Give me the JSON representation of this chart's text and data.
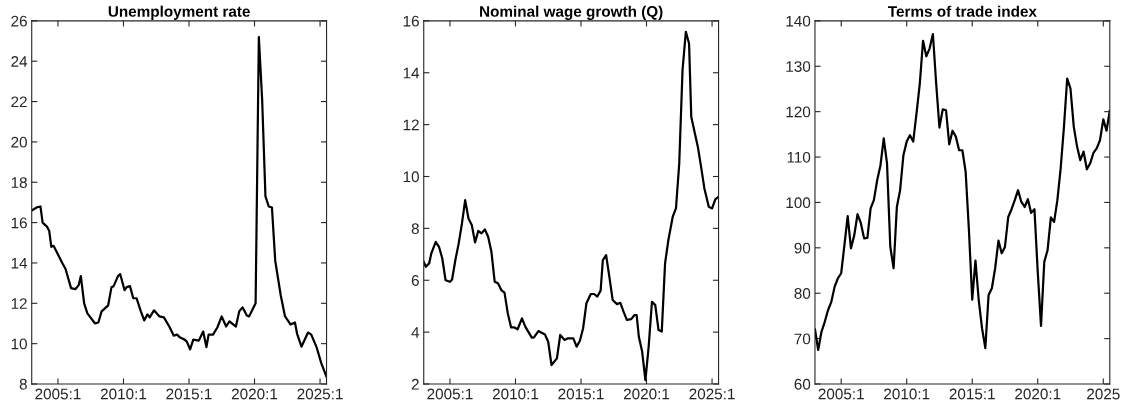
{
  "chart_data": [
    {
      "type": "line",
      "title": "Unemployment rate",
      "xlim": [
        "2003-01",
        "2025-07"
      ],
      "xticks": [
        {
          "value": "2005-01",
          "label": "2005:1"
        },
        {
          "value": "2010-01",
          "label": "2010:1"
        },
        {
          "value": "2015-01",
          "label": "2015:1"
        },
        {
          "value": "2020-01",
          "label": "2020:1"
        },
        {
          "value": "2025-01",
          "label": "2025:1"
        }
      ],
      "ylim": [
        8,
        26
      ],
      "yticks": [
        8,
        10,
        12,
        14,
        16,
        18,
        20,
        22,
        24,
        26
      ],
      "grid": false,
      "marker": "none",
      "line_style": "solid",
      "series": [
        {
          "color": "#000000",
          "x": [
            "2003-01",
            "2003-06",
            "2003-09",
            "2003-11",
            "2004-03",
            "2004-05",
            "2004-07",
            "2004-09",
            "2005-05",
            "2005-08",
            "2006-01",
            "2006-05",
            "2006-08",
            "2006-10",
            "2007-01",
            "2007-04",
            "2007-11",
            "2008-02",
            "2008-05",
            "2008-11",
            "2009-02",
            "2009-04",
            "2009-08",
            "2009-10",
            "2010-02",
            "2010-04",
            "2010-07",
            "2010-10",
            "2011-01",
            "2011-05",
            "2011-08",
            "2011-11",
            "2012-01",
            "2012-05",
            "2012-10",
            "2013-02",
            "2013-07",
            "2013-11",
            "2014-02",
            "2014-05",
            "2014-09",
            "2014-11",
            "2015-02",
            "2015-05",
            "2015-10",
            "2016-02",
            "2016-05",
            "2016-07",
            "2016-11",
            "2017-03",
            "2017-07",
            "2017-11",
            "2018-02",
            "2018-08",
            "2018-11",
            "2019-02",
            "2019-06",
            "2019-08",
            "2020-02",
            "2020-05",
            "2020-08",
            "2020-11",
            "2021-02",
            "2021-05",
            "2021-08",
            "2022-01",
            "2022-05",
            "2022-10",
            "2023-02",
            "2023-04",
            "2023-08",
            "2024-02",
            "2024-05",
            "2024-10",
            "2025-02",
            "2025-07"
          ],
          "values": [
            16.6,
            16.76,
            16.8,
            16.0,
            15.8,
            15.6,
            14.8,
            14.85,
            14.0,
            13.7,
            12.75,
            12.7,
            12.9,
            13.35,
            12.0,
            11.5,
            11.0,
            11.05,
            11.6,
            11.9,
            12.8,
            12.85,
            13.35,
            13.45,
            12.65,
            12.8,
            12.85,
            12.25,
            12.25,
            11.6,
            11.15,
            11.45,
            11.3,
            11.65,
            11.35,
            11.3,
            10.85,
            10.4,
            10.45,
            10.3,
            10.2,
            10.1,
            9.72,
            10.2,
            10.15,
            10.6,
            9.83,
            10.45,
            10.45,
            10.8,
            11.35,
            10.85,
            11.1,
            10.85,
            11.6,
            11.8,
            11.4,
            11.35,
            12.0,
            25.2,
            22.1,
            17.3,
            16.8,
            16.75,
            14.1,
            12.4,
            11.35,
            10.95,
            11.05,
            10.5,
            9.85,
            10.55,
            10.45,
            9.8,
            9.05,
            8.35
          ]
        }
      ]
    },
    {
      "type": "line",
      "title": "Nominal wage growth (Q)",
      "xlim": [
        "2003-01",
        "2025-07"
      ],
      "xticks": [
        {
          "value": "2005-01",
          "label": "2005:1"
        },
        {
          "value": "2010-01",
          "label": "2010:1"
        },
        {
          "value": "2015-01",
          "label": "2015:1"
        },
        {
          "value": "2020-01",
          "label": "2020:1"
        },
        {
          "value": "2025-01",
          "label": "2025:1"
        }
      ],
      "ylim": [
        2,
        16
      ],
      "yticks": [
        2,
        4,
        6,
        8,
        10,
        12,
        14,
        16
      ],
      "grid": false,
      "marker": "none",
      "line_style": "solid",
      "series": [
        {
          "color": "#000000",
          "x": [
            "2003-01",
            "2003-03",
            "2003-06",
            "2003-08",
            "2003-12",
            "2004-03",
            "2004-06",
            "2004-09",
            "2005-01",
            "2005-03",
            "2005-06",
            "2005-09",
            "2005-12",
            "2006-03",
            "2006-06",
            "2006-09",
            "2006-12",
            "2007-03",
            "2007-06",
            "2007-09",
            "2007-12",
            "2008-03",
            "2008-06",
            "2008-09",
            "2008-12",
            "2009-03",
            "2009-06",
            "2009-09",
            "2009-12",
            "2010-03",
            "2010-07",
            "2010-10",
            "2011-04",
            "2011-06",
            "2011-10",
            "2012-04",
            "2012-07",
            "2012-10",
            "2013-03",
            "2013-06",
            "2013-10",
            "2014-01",
            "2014-06",
            "2014-09",
            "2014-12",
            "2015-03",
            "2015-06",
            "2015-10",
            "2016-01",
            "2016-04",
            "2016-07",
            "2016-09",
            "2016-12",
            "2017-03",
            "2017-06",
            "2017-10",
            "2018-01",
            "2018-04",
            "2018-07",
            "2018-11",
            "2019-02",
            "2019-04",
            "2019-06",
            "2019-09",
            "2019-12",
            "2020-03",
            "2020-06",
            "2020-09",
            "2020-12",
            "2021-03",
            "2021-06",
            "2021-09",
            "2022-01",
            "2022-04",
            "2022-07",
            "2022-10",
            "2023-01",
            "2023-04",
            "2023-06",
            "2023-09",
            "2023-12",
            "2024-03",
            "2024-06",
            "2024-10",
            "2025-01",
            "2025-04",
            "2025-07"
          ],
          "values": [
            6.71,
            6.52,
            6.65,
            7.04,
            7.48,
            7.29,
            6.84,
            6.0,
            5.94,
            6.03,
            6.78,
            7.42,
            8.19,
            9.09,
            8.38,
            8.13,
            7.46,
            7.9,
            7.81,
            7.96,
            7.68,
            7.1,
            5.94,
            5.88,
            5.62,
            5.52,
            4.72,
            4.18,
            4.18,
            4.11,
            4.53,
            4.21,
            3.79,
            3.8,
            4.04,
            3.91,
            3.63,
            2.73,
            2.99,
            3.89,
            3.7,
            3.76,
            3.76,
            3.44,
            3.67,
            4.15,
            5.11,
            5.47,
            5.47,
            5.37,
            5.6,
            6.78,
            6.97,
            6.14,
            5.24,
            5.08,
            5.13,
            4.79,
            4.47,
            4.5,
            4.66,
            4.66,
            3.82,
            3.25,
            2.15,
            3.44,
            5.17,
            5.04,
            4.08,
            4.02,
            6.65,
            7.55,
            8.45,
            8.77,
            10.5,
            14.1,
            15.58,
            15.13,
            12.3,
            11.72,
            11.15,
            10.37,
            9.54,
            8.83,
            8.77,
            9.12,
            9.22
          ]
        }
      ]
    },
    {
      "type": "line",
      "title": "Terms of trade index",
      "xlim": [
        "2003-01",
        "2025-07"
      ],
      "xticks": [
        {
          "value": "2005-01",
          "label": "2005:1"
        },
        {
          "value": "2010-01",
          "label": "2010:1"
        },
        {
          "value": "2015-01",
          "label": "2015:1"
        },
        {
          "value": "2020-01",
          "label": "2020:1"
        },
        {
          "value": "2025-01",
          "label": "2025"
        }
      ],
      "ylim": [
        60,
        140
      ],
      "yticks": [
        60,
        70,
        80,
        90,
        100,
        110,
        120,
        130,
        140
      ],
      "grid": false,
      "marker": "none",
      "line_style": "solid",
      "series": [
        {
          "color": "#000000",
          "x": [
            "2003-01",
            "2003-04",
            "2003-07",
            "2003-10",
            "2004-01",
            "2004-04",
            "2004-07",
            "2004-10",
            "2005-01",
            "2005-04",
            "2005-07",
            "2005-10",
            "2006-01",
            "2006-04",
            "2006-07",
            "2006-10",
            "2007-01",
            "2007-04",
            "2007-07",
            "2007-10",
            "2008-01",
            "2008-04",
            "2008-07",
            "2008-10",
            "2009-01",
            "2009-04",
            "2009-07",
            "2009-10",
            "2010-01",
            "2010-04",
            "2010-07",
            "2010-10",
            "2011-01",
            "2011-04",
            "2011-07",
            "2011-10",
            "2012-01",
            "2012-04",
            "2012-07",
            "2012-10",
            "2013-01",
            "2013-04",
            "2013-07",
            "2013-10",
            "2014-01",
            "2014-04",
            "2014-07",
            "2014-10",
            "2015-01",
            "2015-04",
            "2015-07",
            "2015-10",
            "2016-01",
            "2016-04",
            "2016-07",
            "2016-10",
            "2017-01",
            "2017-04",
            "2017-07",
            "2017-10",
            "2018-01",
            "2018-04",
            "2018-07",
            "2018-10",
            "2019-01",
            "2019-04",
            "2019-07",
            "2019-10",
            "2020-01",
            "2020-04",
            "2020-07",
            "2020-10",
            "2021-01",
            "2021-04",
            "2021-07",
            "2021-10",
            "2022-01",
            "2022-04",
            "2022-07",
            "2022-10",
            "2023-01",
            "2023-04",
            "2023-07",
            "2023-10",
            "2024-01",
            "2024-04",
            "2024-07",
            "2024-10",
            "2025-01",
            "2025-04",
            "2025-07"
          ],
          "values": [
            72.0,
            67.5,
            71.5,
            73.7,
            76.3,
            78.1,
            81.4,
            83.3,
            84.4,
            90.6,
            97.0,
            89.9,
            92.8,
            97.4,
            95.5,
            92.1,
            92.2,
            98.7,
            100.5,
            104.9,
            108.2,
            114.1,
            108.6,
            90.2,
            85.5,
            99.0,
            102.7,
            110.4,
            113.4,
            114.8,
            113.4,
            119.6,
            126.2,
            135.6,
            132.2,
            133.9,
            137.1,
            126.2,
            116.5,
            120.5,
            120.3,
            112.8,
            115.8,
            114.5,
            111.5,
            111.5,
            106.8,
            93.9,
            78.6,
            87.2,
            78.5,
            72.3,
            67.9,
            79.6,
            81.1,
            85.5,
            91.6,
            88.8,
            90.2,
            96.8,
            98.5,
            100.5,
            102.7,
            100.1,
            99.0,
            100.7,
            97.7,
            98.5,
            84.7,
            72.8,
            86.9,
            89.5,
            96.7,
            95.7,
            100.5,
            107.5,
            116.7,
            127.3,
            125.1,
            116.7,
            112.3,
            109.3,
            111.2,
            107.3,
            108.6,
            110.9,
            111.9,
            113.7,
            118.3,
            115.8,
            120.2
          ]
        }
      ]
    }
  ]
}
